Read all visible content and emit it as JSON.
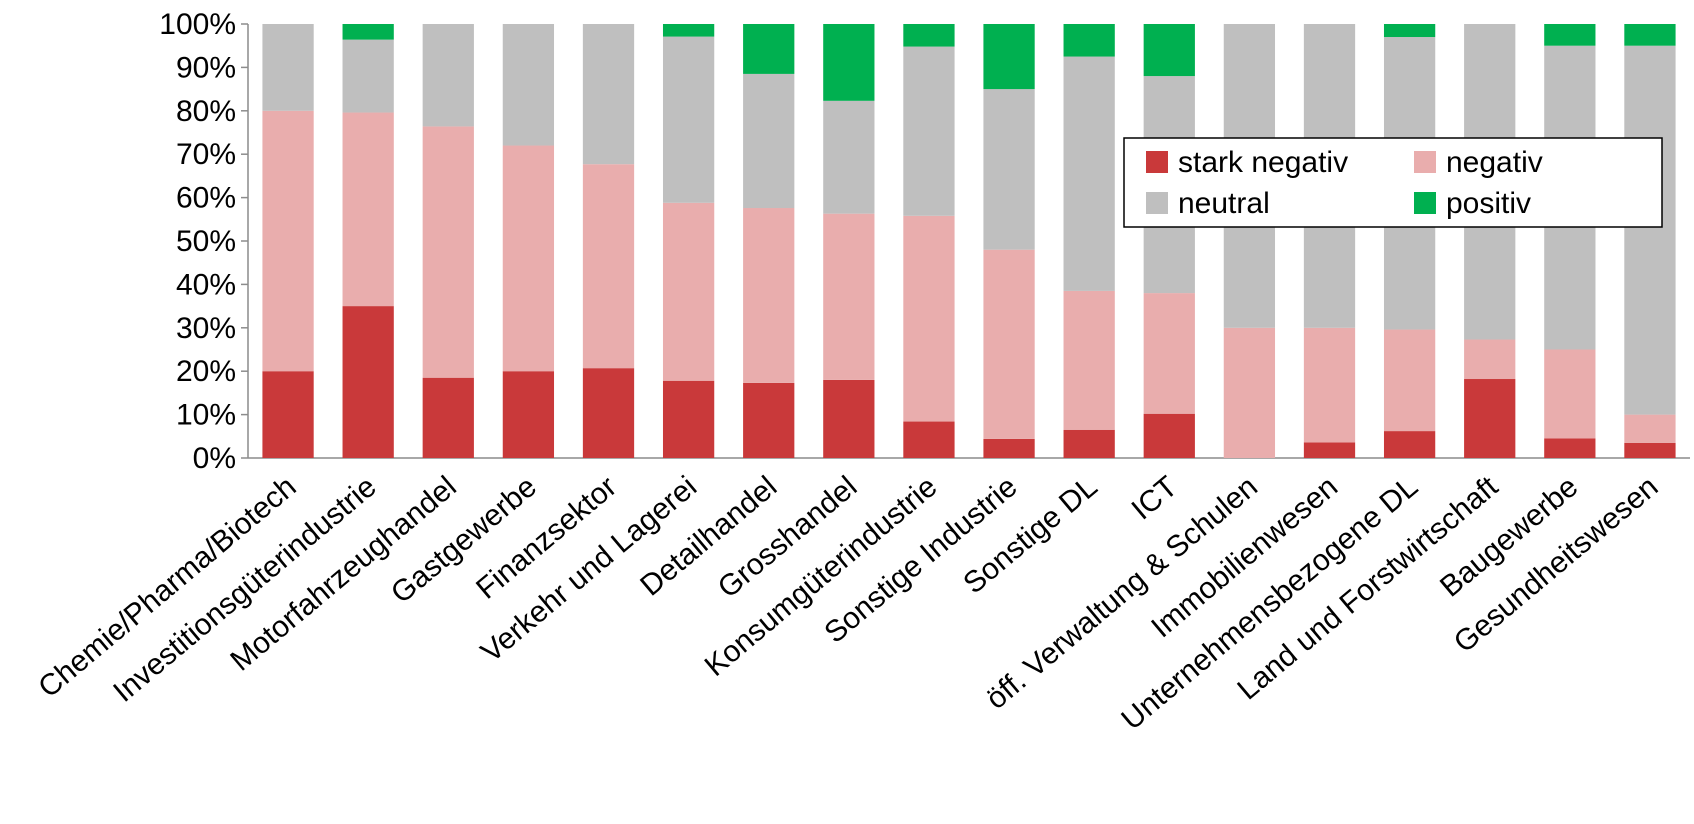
{
  "chart_data": {
    "type": "bar",
    "stacked": true,
    "orientation": "vertical",
    "title": "",
    "xlabel": "",
    "ylabel": "",
    "ylim": [
      0,
      100
    ],
    "yticks": [
      "0%",
      "10%",
      "20%",
      "30%",
      "40%",
      "50%",
      "60%",
      "70%",
      "80%",
      "90%",
      "100%"
    ],
    "grid": false,
    "legend_position": "top-right",
    "categories": [
      "Chemie/Pharma/Biotech",
      "Investitionsgüterindustrie",
      "Motorfahrzeughandel",
      "Gastgewerbe",
      "Finanzsektor",
      "Verkehr und Lagerei",
      "Detailhandel",
      "Grosshandel",
      "Konsumgüterindustrie",
      "Sonstige Industrie",
      "Sonstige DL",
      "ICT",
      "öff. Verwaltung & Schulen",
      "Immobilienwesen",
      "Unternehmensbezogene DL",
      "Land und Forstwirtschaft",
      "Baugewerbe",
      "Gesundheitswesen"
    ],
    "series": [
      {
        "name": "stark negativ",
        "color": "#c9393a",
        "values": [
          20,
          35,
          18.5,
          20,
          20.7,
          17.8,
          17.3,
          18,
          8.4,
          4.4,
          6.5,
          10.2,
          0,
          3.6,
          6.2,
          18.2,
          4.5,
          3.5
        ]
      },
      {
        "name": "negativ",
        "color": "#e9adad",
        "values": [
          60,
          44.6,
          57.9,
          52,
          47,
          41,
          40.3,
          38.3,
          47.4,
          43.6,
          32,
          27.8,
          30,
          26.4,
          23.4,
          9.1,
          20.5,
          6.5
        ]
      },
      {
        "name": "neutral",
        "color": "#bfbfbf",
        "values": [
          20,
          16.8,
          23.6,
          28,
          32.3,
          38.3,
          30.9,
          26,
          39,
          37,
          54,
          50,
          70,
          70,
          67.4,
          72.7,
          70,
          85
        ]
      },
      {
        "name": "positiv",
        "color": "#00b050",
        "values": [
          0,
          3.6,
          0,
          0,
          0,
          2.9,
          11.5,
          17.7,
          5.2,
          15,
          7.5,
          12,
          0,
          0,
          3,
          0,
          5,
          5
        ]
      }
    ]
  }
}
